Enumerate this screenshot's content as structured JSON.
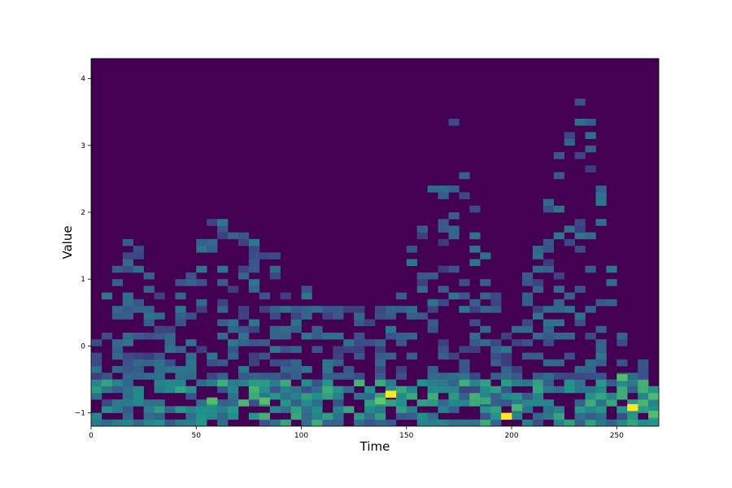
{
  "chart_data": {
    "type": "heatmap",
    "title": "",
    "xlabel": "Time",
    "ylabel": "Value",
    "xlim": [
      0,
      270
    ],
    "ylim": [
      -1.2,
      4.3
    ],
    "x_ticks": [
      0,
      50,
      100,
      150,
      200,
      250
    ],
    "y_ticks": [
      -1,
      0,
      1,
      2,
      3,
      4
    ],
    "x_tick_labels": [
      "0",
      "50",
      "100",
      "150",
      "200",
      "250"
    ],
    "y_tick_labels": [
      "−1",
      "0",
      "1",
      "2",
      "3",
      "4"
    ],
    "colormap": "viridis",
    "colors": {
      "background": "#440154",
      "low": "#3b528b",
      "mid": "#21918c",
      "high": "#5ec962",
      "max": "#fde725"
    },
    "bin_width_x": 5,
    "bin_width_y": 0.1,
    "hot_cells": [
      {
        "x": 142.5,
        "y": -0.72,
        "level": 1.0
      },
      {
        "x": 197.5,
        "y": -1.05,
        "level": 1.0
      },
      {
        "x": 257.5,
        "y": -0.92,
        "level": 1.0
      },
      {
        "x": 137.5,
        "y": -0.82,
        "level": 0.75
      },
      {
        "x": 57.5,
        "y": -0.82,
        "level": 0.7
      },
      {
        "x": 82.5,
        "y": -0.82,
        "level": 0.7
      },
      {
        "x": 252.5,
        "y": -0.47,
        "level": 0.7
      },
      {
        "x": 267.5,
        "y": -1.02,
        "level": 0.7
      },
      {
        "x": 202.5,
        "y": -0.92,
        "level": 0.65
      },
      {
        "x": 187.5,
        "y": -0.82,
        "level": 0.6
      }
    ],
    "density_profile": [
      {
        "x": 2.5,
        "y_max": 0.1
      },
      {
        "x": 12.5,
        "y_max": 1.4
      },
      {
        "x": 17.5,
        "y_max": 1.7
      },
      {
        "x": 37.5,
        "y_max": 0.6
      },
      {
        "x": 57.5,
        "y_max": 1.9
      },
      {
        "x": 82.5,
        "y_max": 1.6
      },
      {
        "x": 97.5,
        "y_max": 1.0
      },
      {
        "x": 117.5,
        "y_max": 0.5
      },
      {
        "x": 142.5,
        "y_max": 0.5
      },
      {
        "x": 157.5,
        "y_max": 2.3
      },
      {
        "x": 167.5,
        "y_max": 2.7
      },
      {
        "x": 172.5,
        "y_max": 3.5
      },
      {
        "x": 197.5,
        "y_max": 0.1
      },
      {
        "x": 212.5,
        "y_max": 1.5
      },
      {
        "x": 227.5,
        "y_max": 4.3
      },
      {
        "x": 237.5,
        "y_max": 3.4
      },
      {
        "x": 252.5,
        "y_max": 0.2
      },
      {
        "x": 267.5,
        "y_max": -0.4
      }
    ],
    "grid": false,
    "legend": "none"
  }
}
